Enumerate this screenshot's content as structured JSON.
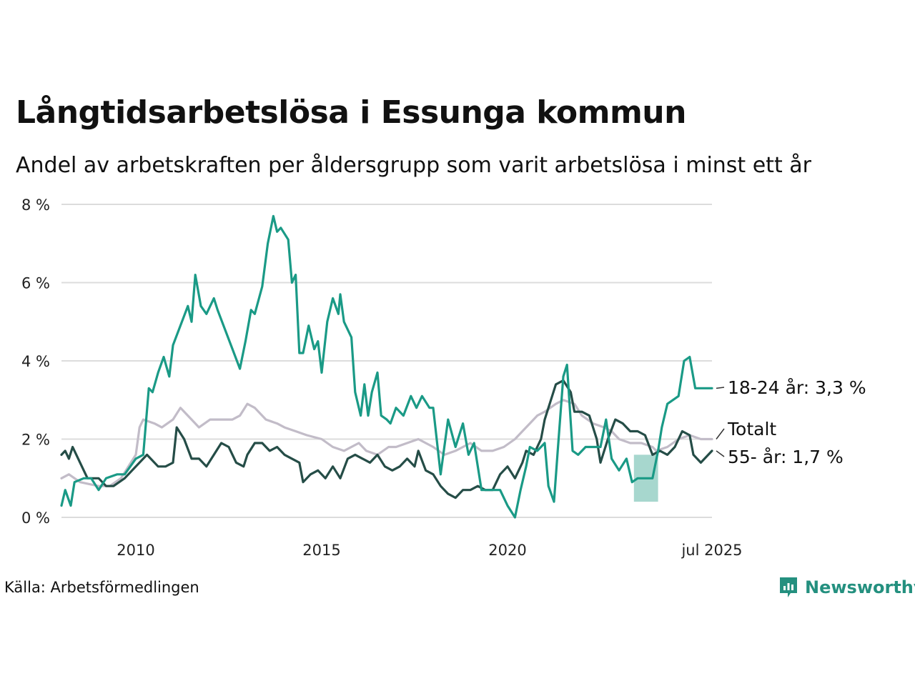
{
  "source": "Källa: Arbetsförmedlingen",
  "brand": "Newsworthy",
  "colors": {
    "youth": "#1a9a86",
    "total": "#c2bcc8",
    "senior": "#254d47",
    "band": "#9dd3c9",
    "grid": "#dcdcdc"
  },
  "chart_data": {
    "type": "line",
    "title": "Långtidsarbetslösa i Essunga kommun",
    "subtitle": "Andel av arbetskraften per åldersgrupp som varit arbetslösa i minst ett år",
    "xlabel": "",
    "ylabel": "",
    "ylim": [
      0,
      8
    ],
    "xlim": [
      2008.0,
      2025.5
    ],
    "grid": true,
    "y_ticks": [
      {
        "value": 0,
        "label": "0 %"
      },
      {
        "value": 2,
        "label": "2 %"
      },
      {
        "value": 4,
        "label": "4 %"
      },
      {
        "value": 6,
        "label": "6 %"
      },
      {
        "value": 8,
        "label": "8 %"
      }
    ],
    "x_ticks": [
      {
        "value": 2010.0,
        "label": "2010"
      },
      {
        "value": 2015.0,
        "label": "2015"
      },
      {
        "value": 2020.0,
        "label": "2020"
      },
      {
        "value": 2025.5,
        "label": "jul 2025"
      }
    ],
    "series": [
      {
        "key": "total",
        "name": "Totalt",
        "label": "Totalt",
        "color": "#c2bcc8",
        "points": [
          [
            2008.0,
            1.0
          ],
          [
            2008.2,
            1.1
          ],
          [
            2008.5,
            0.9
          ],
          [
            2009.0,
            0.8
          ],
          [
            2009.3,
            0.8
          ],
          [
            2009.6,
            1.0
          ],
          [
            2010.0,
            1.6
          ],
          [
            2010.1,
            2.3
          ],
          [
            2010.2,
            2.5
          ],
          [
            2010.5,
            2.4
          ],
          [
            2010.7,
            2.3
          ],
          [
            2011.0,
            2.5
          ],
          [
            2011.2,
            2.8
          ],
          [
            2011.5,
            2.5
          ],
          [
            2011.7,
            2.3
          ],
          [
            2012.0,
            2.5
          ],
          [
            2012.3,
            2.5
          ],
          [
            2012.6,
            2.5
          ],
          [
            2012.8,
            2.6
          ],
          [
            2013.0,
            2.9
          ],
          [
            2013.2,
            2.8
          ],
          [
            2013.5,
            2.5
          ],
          [
            2013.8,
            2.4
          ],
          [
            2014.0,
            2.3
          ],
          [
            2014.3,
            2.2
          ],
          [
            2014.6,
            2.1
          ],
          [
            2015.0,
            2.0
          ],
          [
            2015.3,
            1.8
          ],
          [
            2015.6,
            1.7
          ],
          [
            2016.0,
            1.9
          ],
          [
            2016.2,
            1.7
          ],
          [
            2016.5,
            1.6
          ],
          [
            2016.8,
            1.8
          ],
          [
            2017.0,
            1.8
          ],
          [
            2017.3,
            1.9
          ],
          [
            2017.6,
            2.0
          ],
          [
            2018.0,
            1.8
          ],
          [
            2018.3,
            1.6
          ],
          [
            2018.6,
            1.7
          ],
          [
            2019.0,
            1.9
          ],
          [
            2019.3,
            1.7
          ],
          [
            2019.6,
            1.7
          ],
          [
            2019.9,
            1.8
          ],
          [
            2020.2,
            2.0
          ],
          [
            2020.4,
            2.2
          ],
          [
            2020.6,
            2.4
          ],
          [
            2020.8,
            2.6
          ],
          [
            2021.0,
            2.7
          ],
          [
            2021.3,
            2.9
          ],
          [
            2021.5,
            3.0
          ],
          [
            2021.8,
            2.9
          ],
          [
            2022.0,
            2.6
          ],
          [
            2022.3,
            2.4
          ],
          [
            2022.6,
            2.3
          ],
          [
            2022.8,
            2.2
          ],
          [
            2023.0,
            2.0
          ],
          [
            2023.3,
            1.9
          ],
          [
            2023.6,
            1.9
          ],
          [
            2023.9,
            1.8
          ],
          [
            2024.0,
            1.7
          ],
          [
            2024.3,
            1.8
          ],
          [
            2024.6,
            2.0
          ],
          [
            2024.9,
            2.1
          ],
          [
            2025.2,
            2.0
          ],
          [
            2025.5,
            2.0
          ]
        ]
      },
      {
        "key": "senior",
        "name": "55- år",
        "label": "55- år: 1,7 %",
        "color": "#254d47",
        "points": [
          [
            2008.0,
            1.6
          ],
          [
            2008.1,
            1.7
          ],
          [
            2008.2,
            1.5
          ],
          [
            2008.3,
            1.8
          ],
          [
            2008.5,
            1.4
          ],
          [
            2008.7,
            1.0
          ],
          [
            2009.0,
            1.0
          ],
          [
            2009.2,
            0.8
          ],
          [
            2009.4,
            0.8
          ],
          [
            2009.7,
            1.0
          ],
          [
            2010.0,
            1.3
          ],
          [
            2010.3,
            1.6
          ],
          [
            2010.6,
            1.3
          ],
          [
            2010.8,
            1.3
          ],
          [
            2011.0,
            1.4
          ],
          [
            2011.1,
            2.3
          ],
          [
            2011.3,
            2.0
          ],
          [
            2011.5,
            1.5
          ],
          [
            2011.7,
            1.5
          ],
          [
            2011.9,
            1.3
          ],
          [
            2012.1,
            1.6
          ],
          [
            2012.3,
            1.9
          ],
          [
            2012.5,
            1.8
          ],
          [
            2012.7,
            1.4
          ],
          [
            2012.9,
            1.3
          ],
          [
            2013.0,
            1.6
          ],
          [
            2013.2,
            1.9
          ],
          [
            2013.4,
            1.9
          ],
          [
            2013.6,
            1.7
          ],
          [
            2013.8,
            1.8
          ],
          [
            2014.0,
            1.6
          ],
          [
            2014.2,
            1.5
          ],
          [
            2014.4,
            1.4
          ],
          [
            2014.5,
            0.9
          ],
          [
            2014.7,
            1.1
          ],
          [
            2014.9,
            1.2
          ],
          [
            2015.1,
            1.0
          ],
          [
            2015.3,
            1.3
          ],
          [
            2015.5,
            1.0
          ],
          [
            2015.7,
            1.5
          ],
          [
            2015.9,
            1.6
          ],
          [
            2016.1,
            1.5
          ],
          [
            2016.3,
            1.4
          ],
          [
            2016.5,
            1.6
          ],
          [
            2016.7,
            1.3
          ],
          [
            2016.9,
            1.2
          ],
          [
            2017.1,
            1.3
          ],
          [
            2017.3,
            1.5
          ],
          [
            2017.5,
            1.3
          ],
          [
            2017.6,
            1.7
          ],
          [
            2017.8,
            1.2
          ],
          [
            2018.0,
            1.1
          ],
          [
            2018.2,
            0.8
          ],
          [
            2018.4,
            0.6
          ],
          [
            2018.6,
            0.5
          ],
          [
            2018.8,
            0.7
          ],
          [
            2019.0,
            0.7
          ],
          [
            2019.2,
            0.8
          ],
          [
            2019.4,
            0.7
          ],
          [
            2019.6,
            0.7
          ],
          [
            2019.8,
            1.1
          ],
          [
            2020.0,
            1.3
          ],
          [
            2020.2,
            1.0
          ],
          [
            2020.4,
            1.4
          ],
          [
            2020.5,
            1.7
          ],
          [
            2020.7,
            1.6
          ],
          [
            2020.9,
            2.0
          ],
          [
            2021.0,
            2.5
          ],
          [
            2021.2,
            3.1
          ],
          [
            2021.3,
            3.4
          ],
          [
            2021.5,
            3.5
          ],
          [
            2021.7,
            3.2
          ],
          [
            2021.8,
            2.7
          ],
          [
            2022.0,
            2.7
          ],
          [
            2022.2,
            2.6
          ],
          [
            2022.4,
            2.0
          ],
          [
            2022.5,
            1.4
          ],
          [
            2022.7,
            2.0
          ],
          [
            2022.9,
            2.5
          ],
          [
            2023.1,
            2.4
          ],
          [
            2023.3,
            2.2
          ],
          [
            2023.5,
            2.2
          ],
          [
            2023.7,
            2.1
          ],
          [
            2023.9,
            1.6
          ],
          [
            2024.1,
            1.7
          ],
          [
            2024.3,
            1.6
          ],
          [
            2024.5,
            1.8
          ],
          [
            2024.7,
            2.2
          ],
          [
            2024.9,
            2.1
          ],
          [
            2025.0,
            1.6
          ],
          [
            2025.2,
            1.4
          ],
          [
            2025.4,
            1.6
          ],
          [
            2025.5,
            1.7
          ]
        ]
      },
      {
        "key": "youth",
        "name": "18-24 år",
        "label": "18-24 år: 3,3 %",
        "color": "#1a9a86",
        "points": [
          [
            2008.0,
            0.3
          ],
          [
            2008.1,
            0.7
          ],
          [
            2008.25,
            0.3
          ],
          [
            2008.35,
            0.9
          ],
          [
            2008.6,
            1.0
          ],
          [
            2008.8,
            1.0
          ],
          [
            2009.0,
            0.7
          ],
          [
            2009.2,
            1.0
          ],
          [
            2009.5,
            1.1
          ],
          [
            2009.7,
            1.1
          ],
          [
            2010.0,
            1.5
          ],
          [
            2010.2,
            1.6
          ],
          [
            2010.35,
            3.3
          ],
          [
            2010.45,
            3.2
          ],
          [
            2010.6,
            3.7
          ],
          [
            2010.75,
            4.1
          ],
          [
            2010.9,
            3.6
          ],
          [
            2011.0,
            4.4
          ],
          [
            2011.2,
            4.9
          ],
          [
            2011.4,
            5.4
          ],
          [
            2011.5,
            5.0
          ],
          [
            2011.6,
            6.2
          ],
          [
            2011.75,
            5.4
          ],
          [
            2011.9,
            5.2
          ],
          [
            2012.1,
            5.6
          ],
          [
            2012.2,
            5.3
          ],
          [
            2012.4,
            4.8
          ],
          [
            2012.6,
            4.3
          ],
          [
            2012.8,
            3.8
          ],
          [
            2012.95,
            4.5
          ],
          [
            2013.1,
            5.3
          ],
          [
            2013.2,
            5.2
          ],
          [
            2013.4,
            5.9
          ],
          [
            2013.55,
            7.0
          ],
          [
            2013.7,
            7.7
          ],
          [
            2013.8,
            7.3
          ],
          [
            2013.9,
            7.4
          ],
          [
            2014.1,
            7.1
          ],
          [
            2014.2,
            6.0
          ],
          [
            2014.3,
            6.2
          ],
          [
            2014.4,
            4.2
          ],
          [
            2014.5,
            4.2
          ],
          [
            2014.65,
            4.9
          ],
          [
            2014.8,
            4.3
          ],
          [
            2014.9,
            4.5
          ],
          [
            2015.0,
            3.7
          ],
          [
            2015.15,
            5.0
          ],
          [
            2015.3,
            5.6
          ],
          [
            2015.45,
            5.2
          ],
          [
            2015.5,
            5.7
          ],
          [
            2015.6,
            5.0
          ],
          [
            2015.8,
            4.6
          ],
          [
            2015.9,
            3.2
          ],
          [
            2016.05,
            2.6
          ],
          [
            2016.15,
            3.4
          ],
          [
            2016.25,
            2.6
          ],
          [
            2016.35,
            3.2
          ],
          [
            2016.5,
            3.7
          ],
          [
            2016.6,
            2.6
          ],
          [
            2016.75,
            2.5
          ],
          [
            2016.85,
            2.4
          ],
          [
            2017.0,
            2.8
          ],
          [
            2017.2,
            2.6
          ],
          [
            2017.4,
            3.1
          ],
          [
            2017.55,
            2.8
          ],
          [
            2017.7,
            3.1
          ],
          [
            2017.9,
            2.8
          ],
          [
            2018.0,
            2.8
          ],
          [
            2018.2,
            1.1
          ],
          [
            2018.4,
            2.5
          ],
          [
            2018.6,
            1.8
          ],
          [
            2018.8,
            2.4
          ],
          [
            2018.95,
            1.6
          ],
          [
            2019.1,
            1.9
          ],
          [
            2019.3,
            0.7
          ],
          [
            2019.55,
            0.7
          ],
          [
            2019.8,
            0.7
          ],
          [
            2020.0,
            0.3
          ],
          [
            2020.2,
            0.0
          ],
          [
            2020.35,
            0.7
          ],
          [
            2020.5,
            1.3
          ],
          [
            2020.6,
            1.8
          ],
          [
            2020.8,
            1.7
          ],
          [
            2021.0,
            1.9
          ],
          [
            2021.1,
            0.8
          ],
          [
            2021.25,
            0.4
          ],
          [
            2021.35,
            1.7
          ],
          [
            2021.5,
            3.6
          ],
          [
            2021.6,
            3.9
          ],
          [
            2021.75,
            1.7
          ],
          [
            2021.9,
            1.6
          ],
          [
            2022.1,
            1.8
          ],
          [
            2022.3,
            1.8
          ],
          [
            2022.5,
            1.8
          ],
          [
            2022.65,
            2.5
          ],
          [
            2022.8,
            1.5
          ],
          [
            2023.0,
            1.2
          ],
          [
            2023.2,
            1.5
          ],
          [
            2023.35,
            0.9
          ],
          [
            2023.5,
            1.0
          ],
          [
            2023.9,
            1.0
          ],
          [
            2024.05,
            1.7
          ],
          [
            2024.15,
            2.3
          ],
          [
            2024.3,
            2.9
          ],
          [
            2024.6,
            3.1
          ],
          [
            2024.75,
            4.0
          ],
          [
            2024.9,
            4.1
          ],
          [
            2025.05,
            3.3
          ],
          [
            2025.5,
            3.3
          ]
        ]
      }
    ],
    "uncertainty_band": {
      "series": "youth",
      "x": [
        2023.4,
        2024.05
      ],
      "upper": [
        1.6,
        1.6
      ],
      "lower": [
        0.4,
        0.4
      ]
    }
  }
}
